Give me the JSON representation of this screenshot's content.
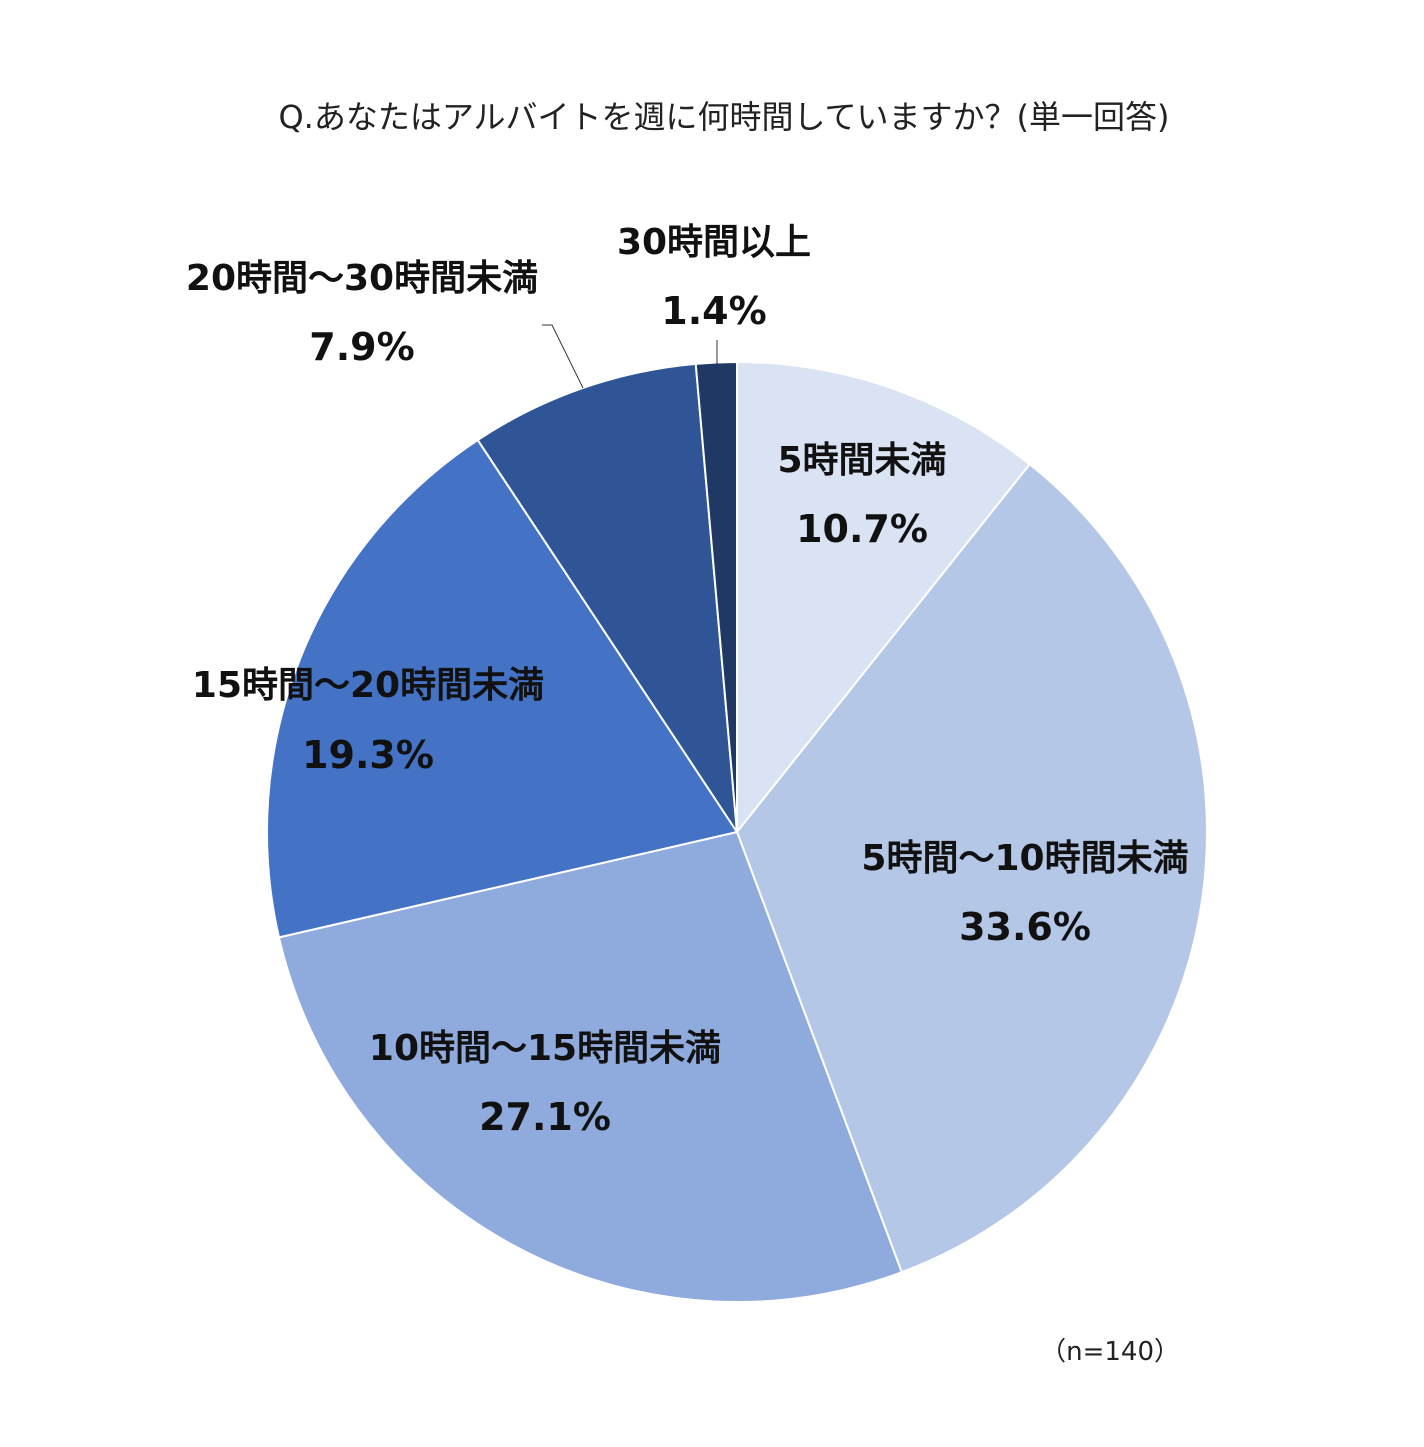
{
  "chart_data": {
    "type": "pie",
    "title": "Q.あなたはアルバイトを週に何時間していますか？(単一回答)",
    "note": "（n=140）",
    "categories": [
      "5時間未満",
      "5時間～10時間未満",
      "10時間～15時間未満",
      "15時間～20時間未満",
      "20時間～30時間未満",
      "30時間以上"
    ],
    "values": [
      10.7,
      33.6,
      27.1,
      19.3,
      7.9,
      1.4
    ],
    "value_labels": [
      "10.7%",
      "33.6%",
      "27.1%",
      "19.3%",
      "7.9%",
      "1.4%"
    ],
    "colors": [
      "#dae3f3",
      "#b4c7e7",
      "#8faadc",
      "#4472c4",
      "#2f5597",
      "#203864"
    ],
    "start": "12 o'clock",
    "direction": "clockwise"
  }
}
